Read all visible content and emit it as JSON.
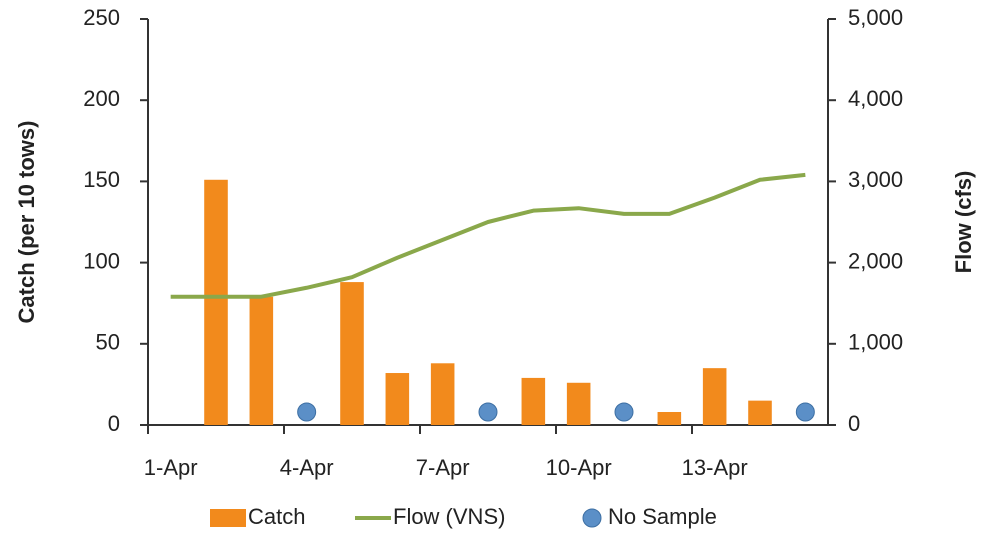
{
  "chart_data": {
    "type": "bar-line",
    "y_label": "Catch (per 10 tows)",
    "y2_label": "Flow (cfs)",
    "categories": [
      "1-Apr",
      null,
      null,
      "4-Apr",
      null,
      null,
      "7-Apr",
      null,
      null,
      "10-Apr",
      null,
      null,
      "13-Apr",
      null,
      null
    ],
    "series": [
      {
        "name": "Catch",
        "type": "bar",
        "color": "#f28a1c",
        "values": [
          null,
          151,
          79,
          null,
          88,
          32,
          38,
          null,
          29,
          26,
          null,
          8,
          35,
          15,
          null
        ]
      },
      {
        "name": "Flow (VNS)",
        "type": "line",
        "axis": "y2",
        "color": "#8aa84b",
        "values": [
          1580,
          1580,
          1580,
          1690,
          1820,
          2060,
          2280,
          2500,
          2640,
          2670,
          2600,
          2600,
          2800,
          3020,
          3080
        ]
      },
      {
        "name": "No Sample",
        "type": "scatter",
        "color": "#5b8fc7",
        "values": [
          null,
          null,
          null,
          8,
          null,
          null,
          null,
          8,
          null,
          null,
          8,
          null,
          null,
          null,
          8
        ]
      }
    ],
    "ylim": [
      0,
      250
    ],
    "yticks": [
      0,
      50,
      100,
      150,
      200,
      250
    ],
    "y2lim": [
      0,
      5000
    ],
    "y2ticks": [
      0,
      {
        "value": 1000,
        "label": "1,000"
      },
      {
        "value": 2000,
        "label": "2,000"
      },
      {
        "value": 3000,
        "label": "3,000"
      },
      {
        "value": 4000,
        "label": "4,000"
      },
      {
        "value": 5000,
        "label": "5,000"
      }
    ]
  }
}
